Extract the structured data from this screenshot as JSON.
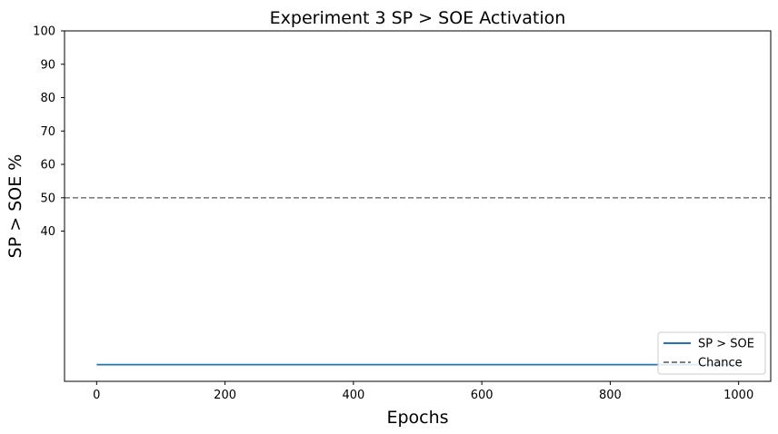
{
  "chart_data": {
    "type": "line",
    "title": "Experiment 3 SP > SOE Activation",
    "xlabel": "Epochs",
    "ylabel": "SP > SOE %",
    "xlim": [
      -50,
      1050
    ],
    "ylim": [
      -5,
      100
    ],
    "xticks": [
      0,
      200,
      400,
      600,
      800,
      1000
    ],
    "yticks": [
      40,
      50,
      60,
      70,
      80,
      90,
      100
    ],
    "grid": false,
    "legend_position": "lower-right",
    "series": [
      {
        "name": "SP > SOE",
        "color": "#1f77b4",
        "style": "solid",
        "x": [
          0,
          1000
        ],
        "y": [
          0,
          0
        ]
      }
    ],
    "reference_lines": [
      {
        "name": "Chance",
        "orientation": "horizontal",
        "value": 50,
        "color": "#808080",
        "style": "dashed"
      }
    ]
  }
}
